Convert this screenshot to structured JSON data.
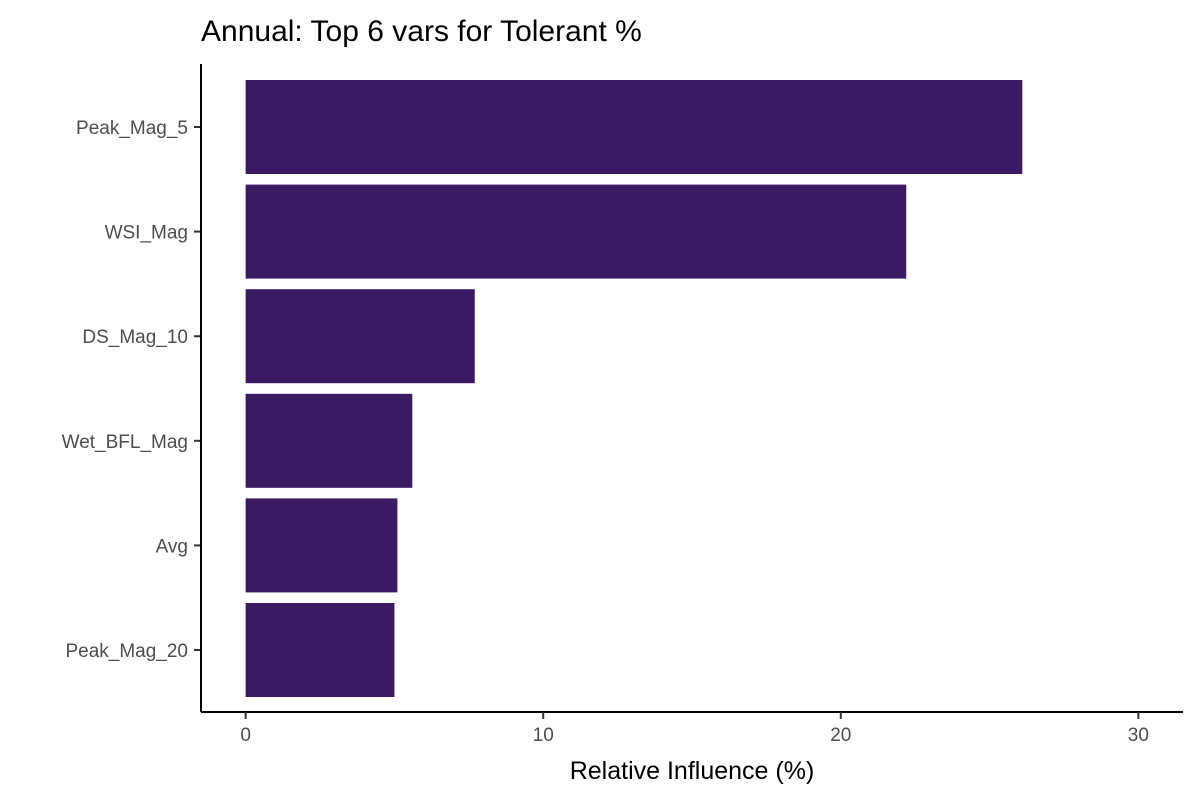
{
  "chart_data": {
    "type": "bar",
    "orientation": "horizontal",
    "title": "Annual: Top 6 vars for Tolerant %",
    "xlabel": "Relative Influence (%)",
    "ylabel": "",
    "categories": [
      "Peak_Mag_5",
      "WSI_Mag",
      "DS_Mag_10",
      "Wet_BFL_Mag",
      "Avg",
      "Peak_Mag_20"
    ],
    "values": [
      26.1,
      22.2,
      7.7,
      5.6,
      5.1,
      5.0
    ],
    "xlim": [
      -1.5,
      31.5
    ],
    "xticks": [
      0,
      10,
      20,
      30
    ],
    "grid": false,
    "legend": "none",
    "bar_color": "#3A1A62"
  }
}
